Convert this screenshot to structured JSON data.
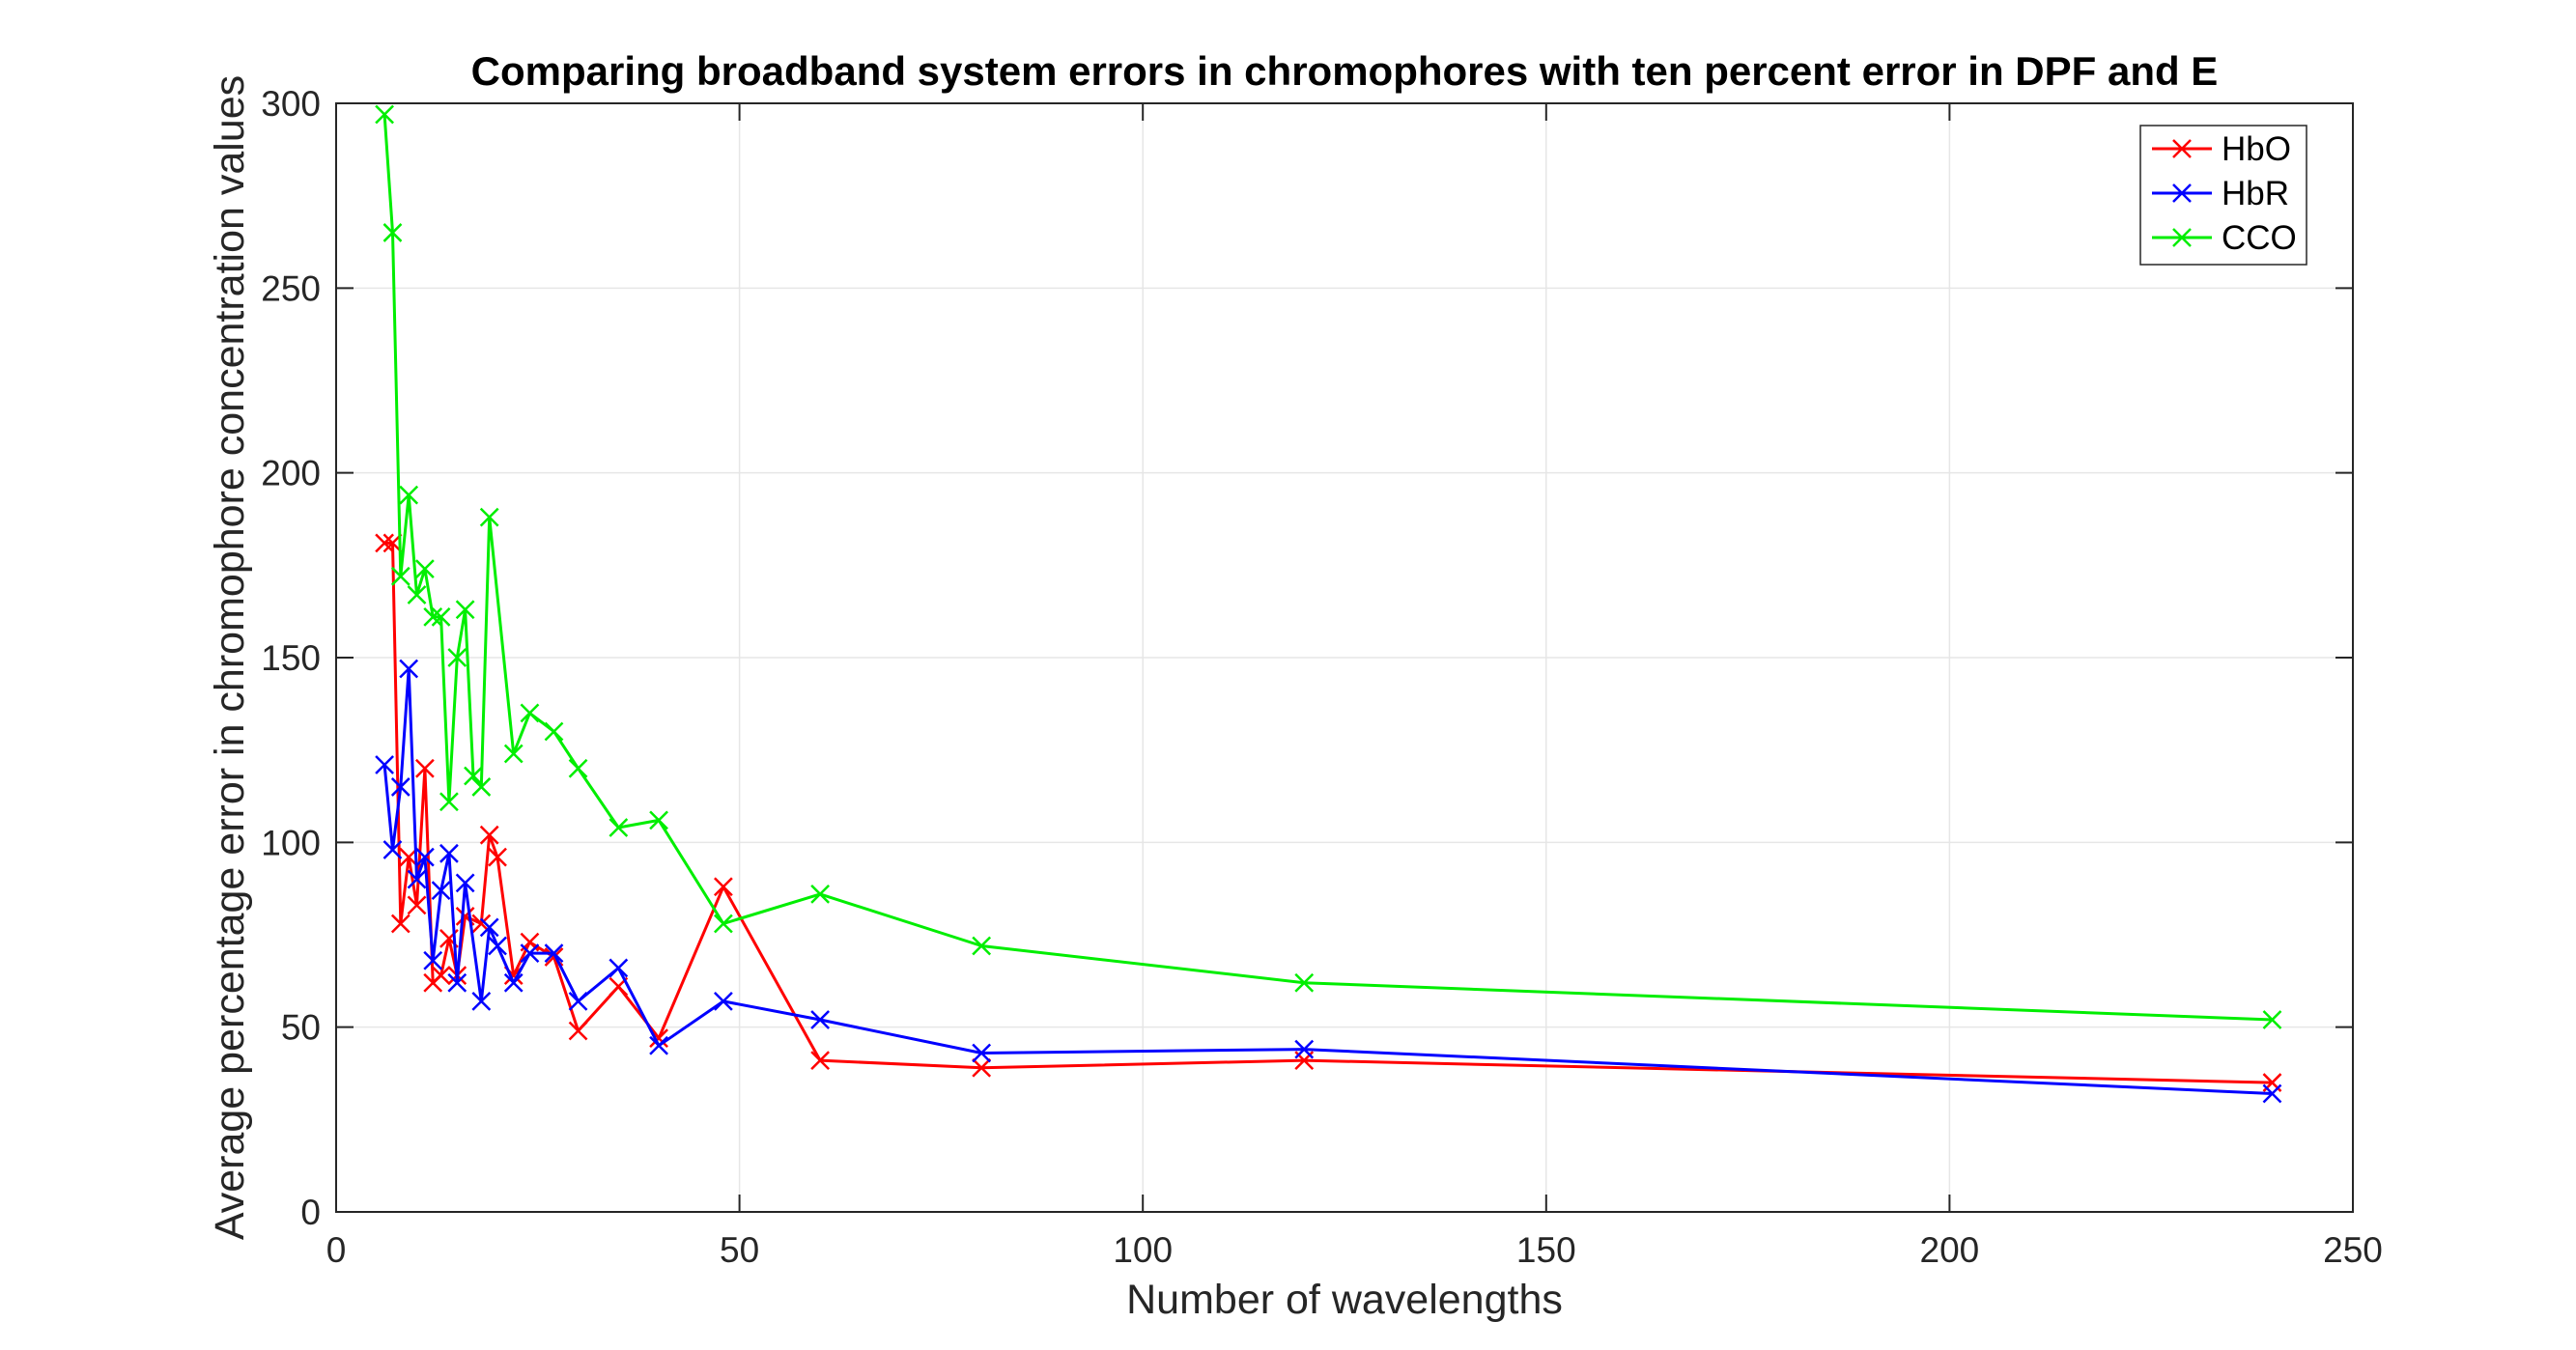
{
  "chart_data": {
    "type": "line",
    "title": "Comparing broadband system errors in chromophores with ten percent error in DPF and E",
    "xlabel": "Number of wavelengths",
    "ylabel": "Average percentage error in chromophore concentration values",
    "xlim": [
      0,
      250
    ],
    "ylim": [
      0,
      300
    ],
    "xticks": [
      0,
      50,
      100,
      150,
      200,
      250
    ],
    "yticks": [
      0,
      50,
      100,
      150,
      200,
      250,
      300
    ],
    "grid": true,
    "legend_position": "top-right",
    "marker": "x",
    "series": [
      {
        "name": "HbO",
        "color": "#ff0000",
        "points": [
          [
            6,
            181
          ],
          [
            7,
            181
          ],
          [
            8,
            78
          ],
          [
            9,
            96
          ],
          [
            10,
            83
          ],
          [
            11,
            120
          ],
          [
            12,
            62
          ],
          [
            13,
            64
          ],
          [
            14,
            74
          ],
          [
            15,
            64
          ],
          [
            16,
            80
          ],
          [
            18,
            78
          ],
          [
            19,
            102
          ],
          [
            20,
            96
          ],
          [
            22,
            64
          ],
          [
            24,
            73
          ],
          [
            27,
            69
          ],
          [
            30,
            49
          ],
          [
            35,
            61
          ],
          [
            40,
            47
          ],
          [
            48,
            88
          ],
          [
            60,
            41
          ],
          [
            80,
            39
          ],
          [
            120,
            41
          ],
          [
            240,
            35
          ]
        ]
      },
      {
        "name": "HbR",
        "color": "#0000ff",
        "points": [
          [
            6,
            121
          ],
          [
            7,
            98
          ],
          [
            8,
            115
          ],
          [
            9,
            147
          ],
          [
            10,
            90
          ],
          [
            11,
            96
          ],
          [
            12,
            68
          ],
          [
            13,
            87
          ],
          [
            14,
            97
          ],
          [
            15,
            62
          ],
          [
            16,
            89
          ],
          [
            18,
            57
          ],
          [
            19,
            77
          ],
          [
            20,
            72
          ],
          [
            22,
            62
          ],
          [
            24,
            70
          ],
          [
            27,
            70
          ],
          [
            30,
            57
          ],
          [
            35,
            66
          ],
          [
            40,
            45
          ],
          [
            48,
            57
          ],
          [
            60,
            52
          ],
          [
            80,
            43
          ],
          [
            120,
            44
          ],
          [
            240,
            32
          ]
        ]
      },
      {
        "name": "CCO",
        "color": "#00ee00",
        "points": [
          [
            6,
            297
          ],
          [
            7,
            265
          ],
          [
            8,
            172
          ],
          [
            9,
            194
          ],
          [
            10,
            167
          ],
          [
            11,
            174
          ],
          [
            12,
            161
          ],
          [
            13,
            161
          ],
          [
            14,
            111
          ],
          [
            15,
            150
          ],
          [
            16,
            163
          ],
          [
            17,
            118
          ],
          [
            18,
            115
          ],
          [
            19,
            188
          ],
          [
            22,
            124
          ],
          [
            24,
            135
          ],
          [
            27,
            130
          ],
          [
            30,
            120
          ],
          [
            35,
            104
          ],
          [
            40,
            106
          ],
          [
            48,
            78
          ],
          [
            60,
            86
          ],
          [
            80,
            72
          ],
          [
            120,
            62
          ],
          [
            240,
            52
          ]
        ]
      }
    ]
  }
}
